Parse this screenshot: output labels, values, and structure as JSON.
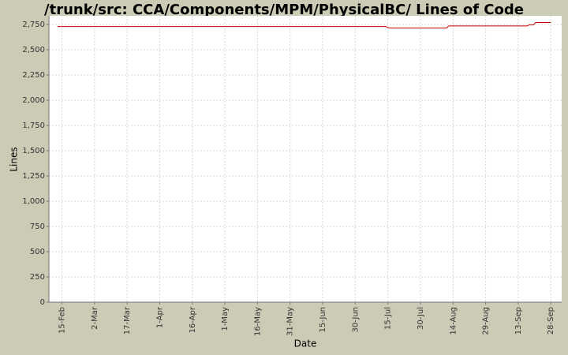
{
  "chart_data": {
    "type": "line",
    "title": "/trunk/src: CCA/Components/MPM/PhysicalBC/ Lines of Code",
    "x_label": "Date",
    "y_label": "Lines",
    "x": [
      "13-Feb",
      "14-Jul",
      "15-Jul",
      "16-Jul",
      "11-Aug",
      "12-Aug",
      "17-Sep",
      "18-Sep",
      "20-Sep",
      "21-Sep",
      "28-Sep"
    ],
    "series": [
      {
        "name": "Lines",
        "color": "#cc0000",
        "values": [
          2730,
          2730,
          2720,
          2715,
          2715,
          2735,
          2735,
          2745,
          2745,
          2770,
          2770
        ]
      }
    ],
    "xlim": [
      "9-Feb",
      "3-Oct"
    ],
    "xticks": [
      "15-Feb",
      "2-Mar",
      "17-Mar",
      "1-Apr",
      "16-Apr",
      "1-May",
      "16-May",
      "31-May",
      "15-Jun",
      "30-Jun",
      "15-Jul",
      "30-Jul",
      "14-Aug",
      "29-Aug",
      "13-Sep",
      "28-Sep"
    ],
    "ylim": [
      0,
      2836
    ],
    "yticks": [
      0,
      250,
      500,
      750,
      {
        "value": 1000,
        "label": "1,000"
      },
      {
        "value": 1250,
        "label": "1,250"
      },
      {
        "value": 1500,
        "label": "1,500"
      },
      {
        "value": 1750,
        "label": "1,750"
      },
      {
        "value": 2000,
        "label": "2,000"
      },
      {
        "value": 2250,
        "label": "2,250"
      },
      {
        "value": 2500,
        "label": "2,500"
      },
      {
        "value": 2750,
        "label": "2,750"
      }
    ],
    "grid": true
  }
}
